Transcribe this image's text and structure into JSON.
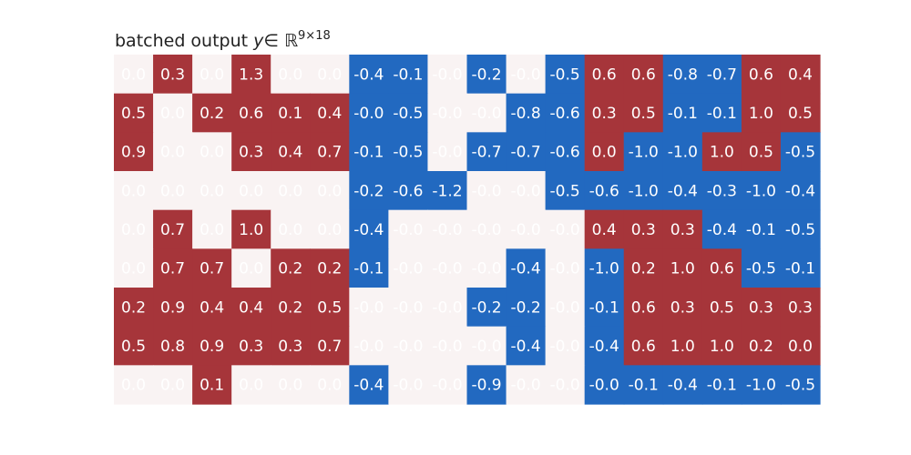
{
  "chart_data": {
    "type": "heatmap",
    "title": "batched output ",
    "title_math_var": "y",
    "title_math_set": "∈ ℝ",
    "title_math_sup": "9×18",
    "rows": 9,
    "cols": 18,
    "colors": {
      "positive": "#a6353a",
      "negative": "#2269c0",
      "zero": "#f9f3f3",
      "text": "#ffffff"
    },
    "display_values": [
      [
        "0.0",
        "0.3",
        "0.0",
        "1.3",
        "0.0",
        "0.0",
        "-0.4",
        "-0.1",
        "-0.0",
        "-0.2",
        "-0.0",
        "-0.5",
        "0.6",
        "0.6",
        "-0.8",
        "-0.7",
        "0.6",
        "0.4"
      ],
      [
        "0.5",
        "0.0",
        "0.2",
        "0.6",
        "0.1",
        "0.4",
        "-0.0",
        "-0.5",
        "-0.0",
        "-0.0",
        "-0.8",
        "-0.6",
        "0.3",
        "0.5",
        "-0.1",
        "-0.1",
        "1.0",
        "0.5"
      ],
      [
        "0.9",
        "0.0",
        "0.0",
        "0.3",
        "0.4",
        "0.7",
        "-0.1",
        "-0.5",
        "-0.0",
        "-0.7",
        "-0.7",
        "-0.6",
        "0.0",
        "-1.0",
        "-1.0",
        "1.0",
        "0.5",
        "-0.5"
      ],
      [
        "0.0",
        "0.0",
        "0.0",
        "0.0",
        "0.0",
        "0.0",
        "-0.2",
        "-0.6",
        "-1.2",
        "-0.0",
        "-0.0",
        "-0.5",
        "-0.6",
        "-1.0",
        "-0.4",
        "-0.3",
        "-1.0",
        "-0.4"
      ],
      [
        "0.0",
        "0.7",
        "0.0",
        "1.0",
        "0.0",
        "0.0",
        "-0.4",
        "-0.0",
        "-0.0",
        "-0.0",
        "-0.0",
        "-0.0",
        "0.4",
        "0.3",
        "0.3",
        "-0.4",
        "-0.1",
        "-0.5"
      ],
      [
        "0.0",
        "0.7",
        "0.7",
        "0.0",
        "0.2",
        "0.2",
        "-0.1",
        "-0.0",
        "-0.0",
        "-0.0",
        "-0.4",
        "-0.0",
        "-1.0",
        "0.2",
        "1.0",
        "0.6",
        "-0.5",
        "-0.1"
      ],
      [
        "0.2",
        "0.9",
        "0.4",
        "0.4",
        "0.2",
        "0.5",
        "-0.0",
        "-0.0",
        "-0.0",
        "-0.2",
        "-0.2",
        "-0.0",
        "-0.1",
        "0.6",
        "0.3",
        "0.5",
        "0.3",
        "0.3"
      ],
      [
        "0.5",
        "0.8",
        "0.9",
        "0.3",
        "0.3",
        "0.7",
        "-0.0",
        "-0.0",
        "-0.0",
        "-0.0",
        "-0.4",
        "-0.0",
        "-0.4",
        "0.6",
        "1.0",
        "1.0",
        "0.2",
        "0.0"
      ],
      [
        "0.0",
        "0.0",
        "0.1",
        "0.0",
        "0.0",
        "0.0",
        "-0.4",
        "-0.0",
        "-0.0",
        "-0.9",
        "-0.0",
        "-0.0",
        "-0.0",
        "-0.1",
        "-0.4",
        "-0.1",
        "-1.0",
        "-0.5"
      ]
    ],
    "cell_sign": [
      [
        0,
        1,
        0,
        1,
        0,
        0,
        -1,
        -1,
        0,
        -1,
        0,
        -1,
        1,
        1,
        -1,
        -1,
        1,
        1
      ],
      [
        1,
        0,
        1,
        1,
        1,
        1,
        -1,
        -1,
        0,
        0,
        -1,
        -1,
        1,
        1,
        -1,
        -1,
        1,
        1
      ],
      [
        1,
        0,
        0,
        1,
        1,
        1,
        -1,
        -1,
        0,
        -1,
        -1,
        -1,
        1,
        -1,
        -1,
        1,
        1,
        -1
      ],
      [
        0,
        0,
        0,
        0,
        0,
        0,
        -1,
        -1,
        -1,
        0,
        0,
        -1,
        -1,
        -1,
        -1,
        -1,
        -1,
        -1
      ],
      [
        0,
        1,
        0,
        1,
        0,
        0,
        -1,
        0,
        0,
        0,
        0,
        0,
        1,
        1,
        1,
        -1,
        -1,
        -1
      ],
      [
        0,
        1,
        1,
        0,
        1,
        1,
        -1,
        0,
        0,
        0,
        -1,
        0,
        -1,
        1,
        1,
        1,
        -1,
        -1
      ],
      [
        1,
        1,
        1,
        1,
        1,
        1,
        0,
        0,
        0,
        -1,
        -1,
        0,
        -1,
        1,
        1,
        1,
        1,
        1
      ],
      [
        1,
        1,
        1,
        1,
        1,
        1,
        0,
        0,
        0,
        0,
        -1,
        0,
        -1,
        1,
        1,
        1,
        1,
        1
      ],
      [
        0,
        0,
        1,
        0,
        0,
        0,
        -1,
        0,
        0,
        -1,
        0,
        0,
        -1,
        -1,
        -1,
        -1,
        -1,
        -1
      ]
    ]
  }
}
